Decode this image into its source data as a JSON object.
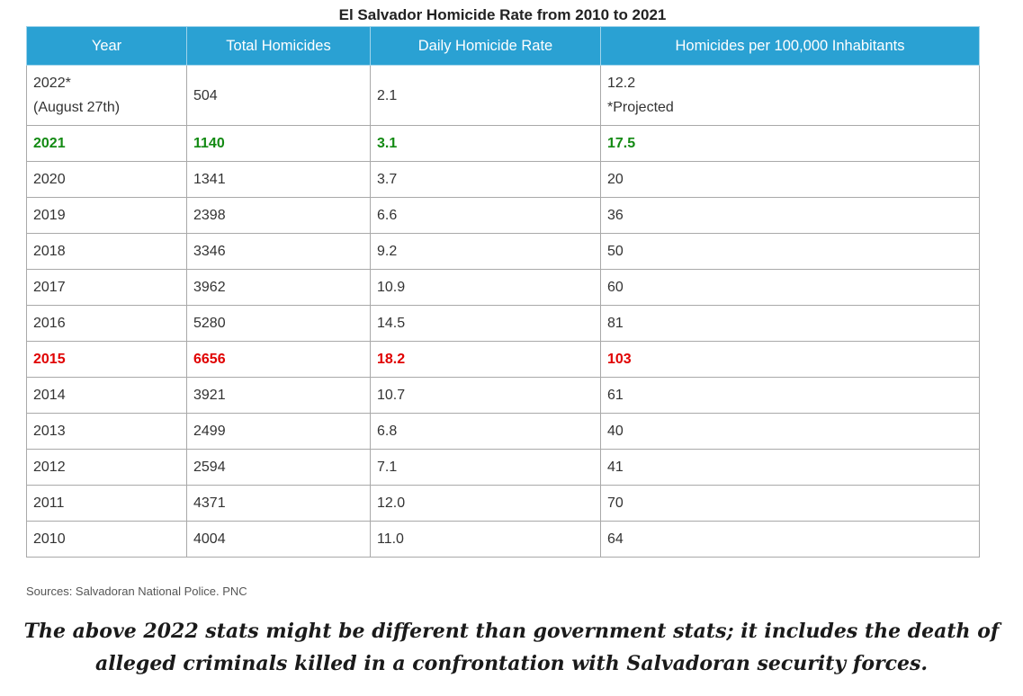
{
  "title": "El Salvador Homicide Rate from 2010 to 2021",
  "table": {
    "headers": [
      "Year",
      "Total Homicides",
      "Daily Homicide Rate",
      "Homicides per 100,000 Inhabitants"
    ],
    "rows": [
      {
        "year": "2022*",
        "year_note": "(August 27th)",
        "total": "504",
        "daily": "2.1",
        "per100k": "12.2",
        "per100k_note": "*Projected",
        "highlight": "none"
      },
      {
        "year": "2021",
        "total": "1140",
        "daily": "3.1",
        "per100k": "17.5",
        "highlight": "green"
      },
      {
        "year": "2020",
        "total": "1341",
        "daily": "3.7",
        "per100k": "20",
        "highlight": "none"
      },
      {
        "year": "2019",
        "total": "2398",
        "daily": "6.6",
        "per100k": "36",
        "highlight": "none"
      },
      {
        "year": "2018",
        "total": "3346",
        "daily": "9.2",
        "per100k": "50",
        "highlight": "none"
      },
      {
        "year": "2017",
        "total": "3962",
        "daily": "10.9",
        "per100k": "60",
        "highlight": "none"
      },
      {
        "year": "2016",
        "total": "5280",
        "daily": "14.5",
        "per100k": "81",
        "highlight": "none"
      },
      {
        "year": "2015",
        "total": "6656",
        "daily": "18.2",
        "per100k": "103",
        "highlight": "red"
      },
      {
        "year": "2014",
        "total": "3921",
        "daily": "10.7",
        "per100k": "61",
        "highlight": "none"
      },
      {
        "year": "2013",
        "total": "2499",
        "daily": "6.8",
        "per100k": "40",
        "highlight": "none"
      },
      {
        "year": "2012",
        "total": "2594",
        "daily": "7.1",
        "per100k": "41",
        "highlight": "none"
      },
      {
        "year": "2011",
        "total": "4371",
        "daily": "12.0",
        "per100k": "70",
        "highlight": "none"
      },
      {
        "year": "2010",
        "total": "4004",
        "daily": "11.0",
        "per100k": "64",
        "highlight": "none"
      }
    ]
  },
  "source": "Sources: Salvadoran National Police. PNC",
  "note": {
    "line1": "The above 2022 stats might be different than government stats; it includes the death of",
    "line2": "alleged criminals killed in a confrontation with Salvadoran security forces."
  },
  "colors": {
    "header_bg": "#2aa1d3",
    "green_row": "#138a13",
    "red_row": "#e00000"
  }
}
